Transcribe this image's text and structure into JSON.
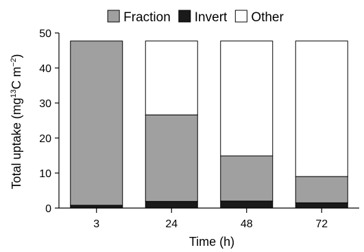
{
  "chart_data": {
    "type": "bar",
    "stacked": true,
    "categories": [
      "3",
      "24",
      "48",
      "72"
    ],
    "series": [
      {
        "name": "Invert",
        "values": [
          0.8,
          1.9,
          2.0,
          1.5
        ],
        "color": "#1a1a1a"
      },
      {
        "name": "Fraction",
        "values": [
          46.9,
          24.7,
          12.9,
          7.5
        ],
        "color": "#a0a0a0"
      },
      {
        "name": "Other",
        "values": [
          0.0,
          21.1,
          32.8,
          38.7
        ],
        "color": "#ffffff"
      }
    ],
    "legend_order": [
      "Fraction",
      "Invert",
      "Other"
    ],
    "legend_position": "top",
    "xlabel": "Time (h)",
    "ylabel_parts": {
      "main": "Total uptake (mg",
      "sup1": "13",
      "mid": "C m",
      "sup2": "−2",
      "end": ")"
    },
    "ylim": [
      0,
      50
    ],
    "yticks": [
      0,
      10,
      20,
      30,
      40,
      50
    ],
    "grid": false
  }
}
